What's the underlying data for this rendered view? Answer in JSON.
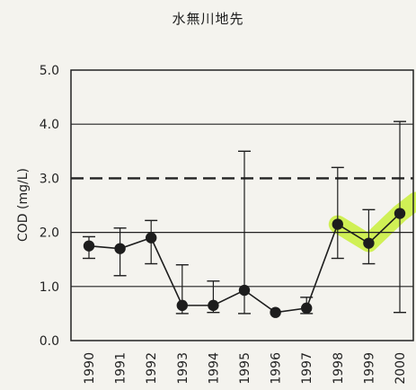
{
  "chart_data": {
    "type": "line",
    "title": "水無川地先",
    "xlabel": "",
    "ylabel": "COD (mg/L)",
    "ylim": [
      0.0,
      5.0
    ],
    "yticks": [
      "0.0",
      "1.0",
      "2.0",
      "3.0",
      "4.0",
      "5.0"
    ],
    "categories": [
      "1990",
      "1991",
      "1992",
      "1993",
      "1994",
      "1995",
      "1996",
      "1997",
      "1998",
      "1999",
      "2000"
    ],
    "series": [
      {
        "values": [
          1.75,
          1.7,
          1.9,
          0.65,
          0.65,
          0.93,
          0.52,
          0.6,
          2.15,
          1.8,
          2.35
        ],
        "error_high": [
          1.92,
          2.08,
          2.22,
          1.4,
          1.1,
          3.5,
          null,
          0.8,
          3.2,
          2.42,
          4.05
        ],
        "error_low": [
          1.52,
          1.2,
          1.42,
          0.5,
          0.52,
          0.5,
          null,
          0.5,
          1.52,
          1.42,
          0.52
        ],
        "highlight_from_category": "1998"
      }
    ],
    "reference_line": {
      "y": 3.0,
      "style": "dashed"
    },
    "grid": true,
    "colors": {
      "line": "#1d1d1d",
      "highlight": "#c9ef3a",
      "grid": "#222222"
    }
  }
}
